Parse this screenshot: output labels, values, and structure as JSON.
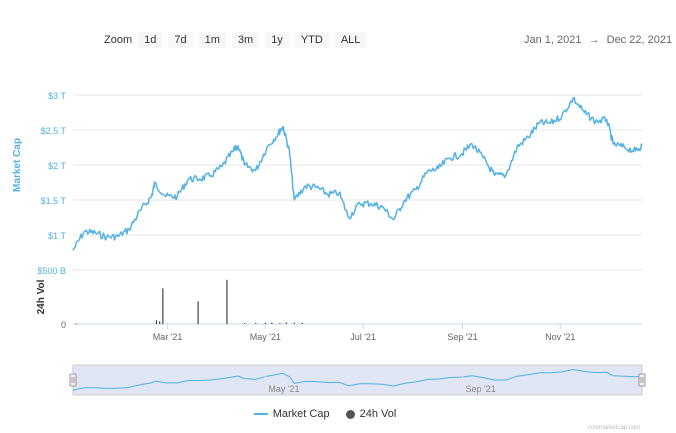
{
  "zoom": {
    "label": "Zoom",
    "buttons": [
      "1d",
      "7d",
      "1m",
      "3m",
      "1y",
      "YTD",
      "ALL"
    ]
  },
  "date_range": {
    "from": "Jan 1, 2021",
    "arrow": "→",
    "to": "Dec 22, 2021"
  },
  "credit": "coinmarketcap.com",
  "colors": {
    "line": "#53b1e3",
    "volume": "#444444",
    "navigator_fill": "#ccd6eb"
  },
  "chart_data": [
    {
      "type": "line",
      "ylabel": "Market Cap",
      "ytick_labels": [
        "$1 T",
        "$1.5 T",
        "$2 T",
        "$2.5 T",
        "$3 T"
      ],
      "ytick_values": [
        1.0,
        1.5,
        2.0,
        2.5,
        3.0
      ],
      "ylim": [
        0.7,
        3.0
      ],
      "xtick_labels": [
        "Mar '21",
        "May '21",
        "Jul '21",
        "Sep '21",
        "Nov '21"
      ],
      "xtick_values": [
        "2021-03-01",
        "2021-05-01",
        "2021-07-01",
        "2021-09-01",
        "2021-11-01"
      ],
      "xlim": [
        "2021-01-01",
        "2021-12-22"
      ],
      "series": [
        {
          "name": "Market Cap",
          "unit": "T USD",
          "points": [
            [
              "2021-01-01",
              0.78
            ],
            [
              "2021-01-08",
              1.05
            ],
            [
              "2021-01-15",
              1.03
            ],
            [
              "2021-01-22",
              0.97
            ],
            [
              "2021-01-29",
              0.98
            ],
            [
              "2021-02-05",
              1.08
            ],
            [
              "2021-02-12",
              1.35
            ],
            [
              "2021-02-19",
              1.55
            ],
            [
              "2021-02-21",
              1.74
            ],
            [
              "2021-02-28",
              1.55
            ],
            [
              "2021-03-07",
              1.55
            ],
            [
              "2021-03-14",
              1.8
            ],
            [
              "2021-03-21",
              1.8
            ],
            [
              "2021-03-28",
              1.85
            ],
            [
              "2021-04-04",
              1.98
            ],
            [
              "2021-04-11",
              2.2
            ],
            [
              "2021-04-14",
              2.27
            ],
            [
              "2021-04-18",
              2.0
            ],
            [
              "2021-04-25",
              1.92
            ],
            [
              "2021-05-02",
              2.25
            ],
            [
              "2021-05-09",
              2.45
            ],
            [
              "2021-05-12",
              2.55
            ],
            [
              "2021-05-16",
              2.2
            ],
            [
              "2021-05-19",
              1.5
            ],
            [
              "2021-05-26",
              1.7
            ],
            [
              "2021-06-02",
              1.68
            ],
            [
              "2021-06-09",
              1.58
            ],
            [
              "2021-06-16",
              1.6
            ],
            [
              "2021-06-22",
              1.25
            ],
            [
              "2021-06-29",
              1.45
            ],
            [
              "2021-07-06",
              1.45
            ],
            [
              "2021-07-13",
              1.4
            ],
            [
              "2021-07-20",
              1.22
            ],
            [
              "2021-07-27",
              1.5
            ],
            [
              "2021-08-03",
              1.65
            ],
            [
              "2021-08-10",
              1.9
            ],
            [
              "2021-08-17",
              1.95
            ],
            [
              "2021-08-24",
              2.1
            ],
            [
              "2021-08-31",
              2.15
            ],
            [
              "2021-09-07",
              2.3
            ],
            [
              "2021-09-14",
              2.1
            ],
            [
              "2021-09-21",
              1.85
            ],
            [
              "2021-09-28",
              1.85
            ],
            [
              "2021-10-05",
              2.25
            ],
            [
              "2021-10-12",
              2.4
            ],
            [
              "2021-10-19",
              2.6
            ],
            [
              "2021-10-26",
              2.6
            ],
            [
              "2021-11-02",
              2.7
            ],
            [
              "2021-11-09",
              2.95
            ],
            [
              "2021-11-16",
              2.75
            ],
            [
              "2021-11-23",
              2.62
            ],
            [
              "2021-11-30",
              2.65
            ],
            [
              "2021-12-04",
              2.3
            ],
            [
              "2021-12-11",
              2.25
            ],
            [
              "2021-12-18",
              2.2
            ],
            [
              "2021-12-22",
              2.28
            ]
          ]
        }
      ]
    },
    {
      "type": "bar",
      "ylabel": "24h Vol",
      "ytick_labels": [
        "0",
        "$500 B"
      ],
      "ytick_values": [
        0,
        500
      ],
      "ylim": [
        0,
        500
      ],
      "series": [
        {
          "name": "24h Vol",
          "unit": "B USD",
          "points": [
            [
              "2021-01-03",
              5
            ],
            [
              "2021-02-22",
              35
            ],
            [
              "2021-02-24",
              25
            ],
            [
              "2021-02-26",
              330
            ],
            [
              "2021-03-20",
              210
            ],
            [
              "2021-04-07",
              410
            ],
            [
              "2021-04-18",
              8
            ],
            [
              "2021-04-25",
              10
            ],
            [
              "2021-05-01",
              10
            ],
            [
              "2021-05-05",
              12
            ],
            [
              "2021-05-10",
              8
            ],
            [
              "2021-05-14",
              15
            ],
            [
              "2021-05-19",
              12
            ],
            [
              "2021-05-24",
              10
            ]
          ]
        }
      ]
    }
  ],
  "navigator": {
    "xtick_labels": [
      "May '21",
      "Sep '21"
    ],
    "xtick_values": [
      "2021-05-01",
      "2021-09-01"
    ]
  },
  "legend": [
    {
      "label": "Market Cap",
      "symbol": "line"
    },
    {
      "label": "24h Vol",
      "symbol": "dot"
    }
  ]
}
